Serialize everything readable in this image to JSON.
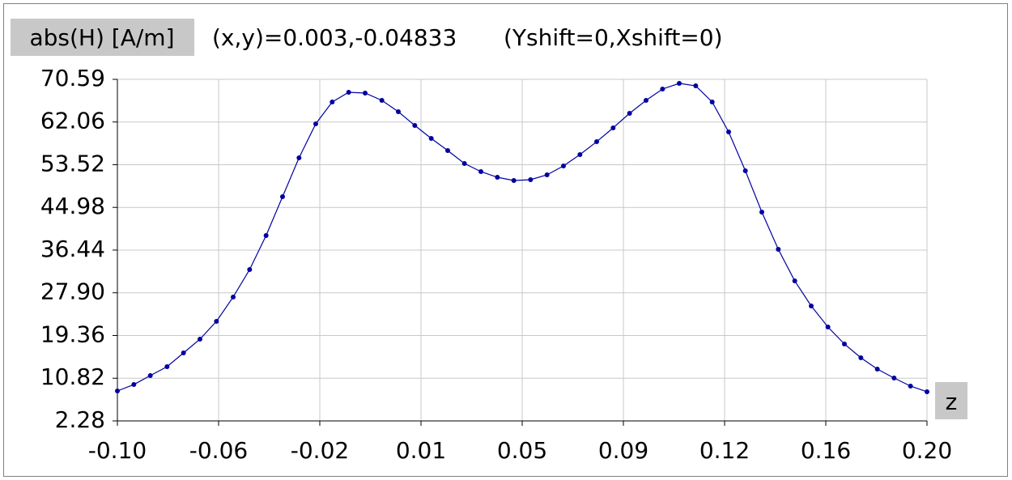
{
  "chart_data": {
    "type": "line",
    "title": "abs(H)  [A/m]",
    "subtitle": "(x,y)=0.003,-0.04833",
    "annotation": "(Yshift=0,Xshift=0)",
    "x_label": "z",
    "grid": true,
    "xlim": [
      -0.1,
      0.2
    ],
    "ylim": [
      2.28,
      70.59
    ],
    "xticks": [
      {
        "value": -0.1,
        "label": "-0.10"
      },
      {
        "value": -0.0625,
        "label": "-0.06"
      },
      {
        "value": -0.025,
        "label": "-0.02"
      },
      {
        "value": 0.0125,
        "label": "0.01"
      },
      {
        "value": 0.05,
        "label": "0.05"
      },
      {
        "value": 0.0875,
        "label": "0.09"
      },
      {
        "value": 0.125,
        "label": "0.12"
      },
      {
        "value": 0.1625,
        "label": "0.16"
      },
      {
        "value": 0.2,
        "label": "0.20"
      }
    ],
    "yticks": [
      2.28,
      10.82,
      19.36,
      {
        "value": 27.9,
        "label": "27.90"
      },
      36.44,
      44.98,
      53.52,
      62.06,
      70.59
    ],
    "x": [
      -0.1,
      -0.0939,
      -0.0878,
      -0.0816,
      -0.0755,
      -0.0694,
      -0.0633,
      -0.0571,
      -0.051,
      -0.0449,
      -0.0388,
      -0.0327,
      -0.0265,
      -0.0204,
      -0.0143,
      -0.0082,
      -0.002,
      0.0041,
      0.0102,
      0.0163,
      0.0224,
      0.0286,
      0.0347,
      0.0408,
      0.0469,
      0.0531,
      0.0592,
      0.0653,
      0.0714,
      0.0776,
      0.0837,
      0.0898,
      0.0959,
      0.102,
      0.1082,
      0.1143,
      0.1204,
      0.1265,
      0.1327,
      0.1388,
      0.1449,
      0.151,
      0.1571,
      0.1633,
      0.1694,
      0.1755,
      0.1816,
      0.1878,
      0.1939,
      0.2
    ],
    "series": [
      {
        "color": "#0000a0",
        "values": [
          8.27,
          9.56,
          11.34,
          13.13,
          15.88,
          18.63,
          22.19,
          27.05,
          32.55,
          39.35,
          47.12,
          54.89,
          61.69,
          66.06,
          68.0,
          67.84,
          66.38,
          64.11,
          61.36,
          58.77,
          56.35,
          53.75,
          52.14,
          51.0,
          50.36,
          50.52,
          51.49,
          53.27,
          55.54,
          58.12,
          60.88,
          63.79,
          66.38,
          68.65,
          69.78,
          69.29,
          66.06,
          60.07,
          52.3,
          44.04,
          36.6,
          30.28,
          25.27,
          21.06,
          17.66,
          14.91,
          12.64,
          10.86,
          9.24,
          8.11
        ]
      }
    ]
  }
}
